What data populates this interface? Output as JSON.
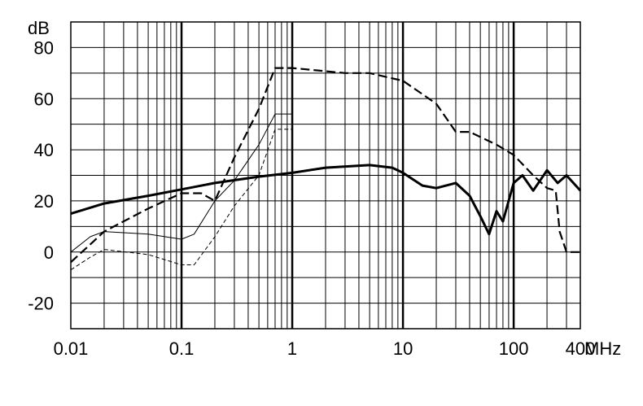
{
  "chart_data": {
    "type": "line",
    "title": "",
    "xlabel": "",
    "ylabel": "dB",
    "x_unit": "MHz",
    "x_scale": "log",
    "xlim": [
      0.01,
      400
    ],
    "ylim": [
      -30,
      90
    ],
    "grid": true,
    "x_tick_labels": [
      "0.01",
      "0.1",
      "1",
      "10",
      "100",
      "400"
    ],
    "y_tick_labels": [
      "-20",
      "0",
      "20",
      "40",
      "60",
      "80"
    ],
    "y_ticks": [
      -20,
      0,
      20,
      40,
      60,
      80
    ],
    "series": [
      {
        "style": "thick-solid",
        "x": [
          0.01,
          0.02,
          0.05,
          0.1,
          0.2,
          0.5,
          1,
          2,
          5,
          8,
          10,
          15,
          20,
          30,
          40,
          50,
          60,
          70,
          80,
          100,
          120,
          150,
          200,
          250,
          300,
          400
        ],
        "values": [
          15,
          19,
          22,
          24.5,
          27,
          29.5,
          31,
          33,
          34,
          33,
          31,
          26,
          25,
          27,
          22,
          14,
          7,
          16,
          12,
          27,
          30,
          24,
          32,
          27,
          30,
          24
        ]
      },
      {
        "style": "thick-dashed",
        "x": [
          0.01,
          0.015,
          0.02,
          0.05,
          0.1,
          0.15,
          0.2,
          0.3,
          0.5,
          0.7,
          1,
          3,
          5,
          10,
          20,
          30,
          40,
          50,
          70,
          100,
          150,
          200,
          240,
          260,
          300,
          400
        ],
        "values": [
          -4,
          3,
          8,
          17,
          23,
          23,
          20,
          37,
          56,
          72,
          72,
          70,
          70,
          67,
          58,
          47,
          47,
          45,
          42,
          38,
          30,
          25,
          24,
          8,
          0,
          0
        ]
      },
      {
        "style": "thin-solid",
        "x": [
          0.01,
          0.015,
          0.02,
          0.05,
          0.1,
          0.13,
          0.2,
          0.3,
          0.5,
          0.7,
          1
        ],
        "values": [
          0,
          6,
          8,
          7,
          5,
          7,
          20,
          28,
          42,
          54,
          54
        ]
      },
      {
        "style": "thin-dashed",
        "x": [
          0.01,
          0.015,
          0.02,
          0.05,
          0.1,
          0.13,
          0.2,
          0.3,
          0.5,
          0.7,
          1
        ],
        "values": [
          -7,
          -2,
          1,
          -1,
          -5,
          -5,
          6,
          18,
          30,
          48,
          48
        ]
      }
    ]
  }
}
